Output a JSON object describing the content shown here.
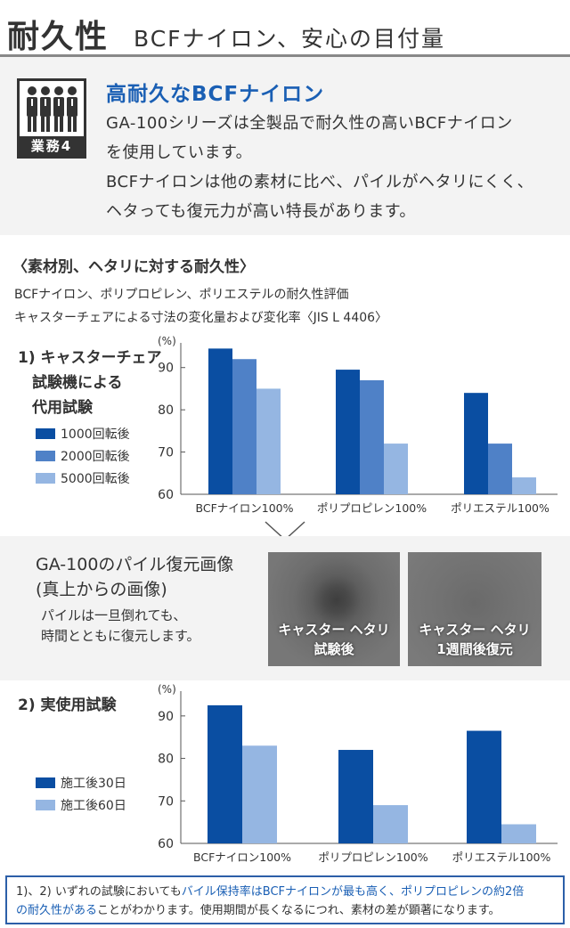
{
  "header": {
    "title": "耐久性",
    "subtitle": "BCFナイロン、安心の目付量"
  },
  "intro": {
    "icon_label": "業務4",
    "heading": "高耐久なBCFナイロン",
    "lines": [
      "GA-100シリーズは全製品で耐久性の高いBCFナイロン",
      "を使用しています。",
      "BCFナイロンは他の素材に比べ、パイルがヘタリにくく、",
      "ヘタっても復元力が高い特長があります。"
    ]
  },
  "section": {
    "title": "〈素材別、ヘタリに対する耐久性〉",
    "desc1": "BCFナイロン、ポリプロピレン、ポリエステルの耐久性評価",
    "desc2": "キャスターチェアによる寸法の変化量および変化率〈JIS L 4406〉"
  },
  "chart1_label": [
    "1) キャスターチェア",
    "試験機による",
    "代用試験"
  ],
  "chart2_label": [
    "2) 実使用試験"
  ],
  "restore": {
    "title1": "GA-100のパイル復元画像",
    "title2": "(真上からの画像)",
    "desc1": "パイルは一旦倒れても、",
    "desc2": "時間とともに復元します。",
    "photo1_line1": "キャスター ヘタリ",
    "photo1_line2": "試験後",
    "photo2_line1": "キャスター ヘタリ",
    "photo2_line2": "1週間後復元"
  },
  "note": {
    "part1": "1)、2) いずれの試験においても",
    "part2": "バイル保持率はBCFナイロンが最も高く、ポリプロピレンの約2倍",
    "part3": "の耐久性がある",
    "part4": "ことがわかります。使用期間が長くなるにつれ、素材の差が顕著になります。"
  },
  "colors": {
    "dark": "#0a4ea2",
    "mid": "#4f81c7",
    "light": "#95b6e2",
    "heading": "#1a5fb4"
  },
  "chart_data": [
    {
      "type": "bar",
      "categories": [
        "BCFナイロン100%",
        "ポリプロピレン100%",
        "ポリエステル100%"
      ],
      "series": [
        {
          "name": "1000回転後",
          "values": [
            94.5,
            89.5,
            84
          ]
        },
        {
          "name": "2000回転後",
          "values": [
            92,
            87,
            72
          ]
        },
        {
          "name": "5000回転後",
          "values": [
            85,
            72,
            64
          ]
        }
      ],
      "ylabel": "(%)",
      "ylim": [
        60,
        95
      ],
      "yticks": [
        60,
        70,
        80,
        90
      ],
      "grid": false,
      "legend": "left"
    },
    {
      "type": "bar",
      "categories": [
        "BCFナイロン100%",
        "ポリプロピレン100%",
        "ポリエステル100%"
      ],
      "series": [
        {
          "name": "施工後30日",
          "values": [
            92.5,
            82,
            86.5
          ]
        },
        {
          "name": "施工後60日",
          "values": [
            83,
            69,
            64.5
          ]
        }
      ],
      "ylabel": "(%)",
      "ylim": [
        60,
        95
      ],
      "yticks": [
        60,
        70,
        80,
        90
      ],
      "grid": false,
      "legend": "left"
    }
  ]
}
